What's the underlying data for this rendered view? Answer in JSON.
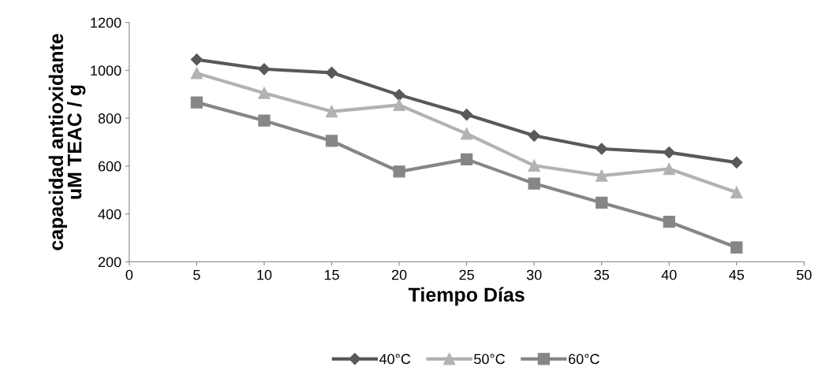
{
  "chart_data": {
    "type": "line",
    "xlabel": "Tiempo Días",
    "ylabel": "capacidad antioxidante\nuM TEAC / g",
    "x": [
      5,
      10,
      15,
      20,
      25,
      30,
      35,
      40,
      45
    ],
    "series": [
      {
        "name": "40°C",
        "color": "#595959",
        "marker": "diamond",
        "values": [
          1045,
          1005,
          990,
          897,
          815,
          727,
          672,
          657,
          615
        ]
      },
      {
        "name": "50°C",
        "color": "#b2b2b2",
        "marker": "triangle",
        "values": [
          988,
          905,
          828,
          855,
          735,
          602,
          560,
          588,
          490
        ]
      },
      {
        "name": "60°C",
        "color": "#868686",
        "marker": "square",
        "values": [
          866,
          790,
          705,
          577,
          628,
          527,
          447,
          367,
          260
        ]
      }
    ],
    "xlim": [
      0,
      50
    ],
    "xticks": [
      0,
      5,
      10,
      15,
      20,
      25,
      30,
      35,
      40,
      45,
      50
    ],
    "ylim": [
      200,
      1200
    ],
    "yticks": [
      200,
      400,
      600,
      800,
      1000,
      1200
    ],
    "grid": false,
    "legend": "bottom"
  }
}
